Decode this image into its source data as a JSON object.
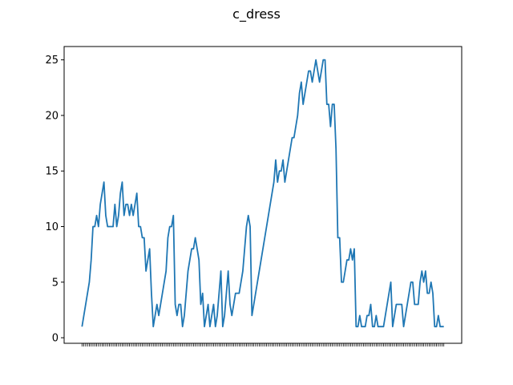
{
  "chart_data": {
    "type": "line",
    "title": "c_dress",
    "xlabel": "",
    "ylabel": "",
    "ylim": [
      -0.5,
      26.2
    ],
    "yticks": [
      0,
      5,
      10,
      15,
      20,
      25
    ],
    "grid": false,
    "line_color": "#1f77b4",
    "values": [
      1,
      2,
      3,
      4,
      5,
      7,
      10,
      10,
      11,
      10,
      12,
      13,
      14,
      11,
      10,
      10,
      10,
      10,
      12,
      10,
      11,
      13,
      14,
      11,
      12,
      12,
      11,
      12,
      11,
      12,
      13,
      10,
      10,
      9,
      9,
      6,
      7,
      8,
      4,
      1,
      2,
      3,
      2,
      3,
      4,
      5,
      6,
      9,
      10,
      10,
      11,
      3,
      2,
      3,
      3,
      1,
      2,
      4,
      6,
      7,
      8,
      8,
      9,
      8,
      7,
      3,
      4,
      1,
      2,
      3,
      1,
      2,
      3,
      1,
      2,
      4,
      6,
      1,
      2,
      4,
      6,
      3,
      2,
      3,
      4,
      4,
      4,
      5,
      6,
      8,
      10,
      11,
      10,
      2,
      3,
      4,
      5,
      6,
      7,
      8,
      9,
      10,
      11,
      12,
      13,
      14,
      16,
      14,
      15,
      15,
      16,
      14,
      15,
      16,
      17,
      18,
      18,
      19,
      20,
      22,
      23,
      21,
      22,
      23,
      24,
      24,
      23,
      24,
      25,
      24,
      23,
      24,
      25,
      25,
      21,
      21,
      19,
      21,
      21,
      17,
      9,
      9,
      5,
      5,
      6,
      7,
      7,
      8,
      7,
      8,
      1,
      1,
      2,
      1,
      1,
      1,
      2,
      2,
      3,
      1,
      1,
      2,
      1,
      1,
      1,
      1,
      2,
      3,
      4,
      5,
      1,
      2,
      3,
      3,
      3,
      3,
      1,
      2,
      3,
      4,
      5,
      5,
      3,
      3,
      3,
      5,
      6,
      5,
      6,
      4,
      4,
      5,
      4,
      1,
      1,
      2,
      1,
      1,
      1
    ]
  }
}
